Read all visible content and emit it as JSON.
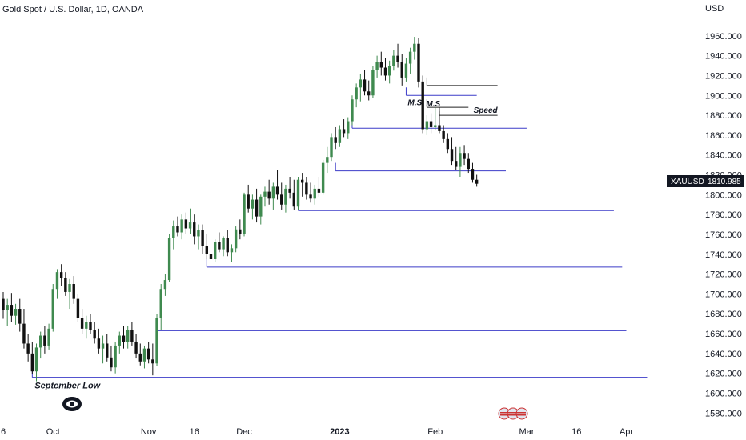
{
  "header": {
    "title": "Gold Spot / U.S. Dollar, 1D, OANDA",
    "currency": "USD"
  },
  "colors": {
    "bull": "#3f8a4f",
    "bear": "#111111",
    "level": "#3b3bc8",
    "ms_line": "#222222",
    "badge_bg": "#131722"
  },
  "chart_data": {
    "type": "candlestick",
    "symbol": "XAUUSD",
    "last_price": "1810.985",
    "ylim": [
      1573,
      1980
    ],
    "y_ticks": [
      "1580.000",
      "1600.000",
      "1620.000",
      "1640.000",
      "1660.000",
      "1680.000",
      "1700.000",
      "1720.000",
      "1740.000",
      "1760.000",
      "1780.000",
      "1800.000",
      "1820.000",
      "1840.000",
      "1860.000",
      "1880.000",
      "1900.000",
      "1920.000",
      "1940.000",
      "1960.000"
    ],
    "y_tick_values": [
      1580,
      1600,
      1620,
      1640,
      1660,
      1680,
      1700,
      1720,
      1740,
      1760,
      1780,
      1800,
      1820,
      1840,
      1860,
      1880,
      1900,
      1920,
      1940,
      1960
    ],
    "x_ticks": [
      {
        "label": "6",
        "index": 0
      },
      {
        "label": "Oct",
        "index": 12
      },
      {
        "label": "Nov",
        "index": 35
      },
      {
        "label": "16",
        "index": 46
      },
      {
        "label": "Dec",
        "index": 58
      },
      {
        "label": "2023",
        "index": 81
      },
      {
        "label": "Feb",
        "index": 104
      },
      {
        "label": "16",
        "index": 138
      },
      {
        "label": "Mar",
        "index": 126
      },
      {
        "label": "Apr",
        "index": 150
      }
    ],
    "candles": [
      [
        1695,
        1702,
        1675,
        1684
      ],
      [
        1684,
        1695,
        1668,
        1689
      ],
      [
        1689,
        1701,
        1672,
        1678
      ],
      [
        1678,
        1690,
        1669,
        1685
      ],
      [
        1685,
        1695,
        1662,
        1670
      ],
      [
        1670,
        1685,
        1645,
        1650
      ],
      [
        1650,
        1660,
        1632,
        1640
      ],
      [
        1640,
        1652,
        1619,
        1622
      ],
      [
        1622,
        1650,
        1612,
        1646
      ],
      [
        1646,
        1662,
        1635,
        1658
      ],
      [
        1658,
        1668,
        1640,
        1648
      ],
      [
        1648,
        1670,
        1644,
        1665
      ],
      [
        1665,
        1710,
        1662,
        1705
      ],
      [
        1705,
        1725,
        1695,
        1722
      ],
      [
        1722,
        1730,
        1708,
        1716
      ],
      [
        1716,
        1722,
        1698,
        1702
      ],
      [
        1702,
        1715,
        1685,
        1710
      ],
      [
        1710,
        1718,
        1690,
        1695
      ],
      [
        1695,
        1700,
        1672,
        1676
      ],
      [
        1676,
        1685,
        1660,
        1665
      ],
      [
        1665,
        1678,
        1655,
        1672
      ],
      [
        1672,
        1680,
        1660,
        1664
      ],
      [
        1664,
        1672,
        1650,
        1655
      ],
      [
        1655,
        1665,
        1640,
        1645
      ],
      [
        1645,
        1658,
        1630,
        1650
      ],
      [
        1650,
        1660,
        1632,
        1636
      ],
      [
        1636,
        1648,
        1622,
        1626
      ],
      [
        1626,
        1652,
        1620,
        1648
      ],
      [
        1648,
        1662,
        1640,
        1658
      ],
      [
        1658,
        1668,
        1645,
        1652
      ],
      [
        1652,
        1668,
        1645,
        1664
      ],
      [
        1664,
        1672,
        1648,
        1652
      ],
      [
        1652,
        1660,
        1635,
        1640
      ],
      [
        1640,
        1650,
        1628,
        1632
      ],
      [
        1632,
        1648,
        1625,
        1645
      ],
      [
        1645,
        1652,
        1630,
        1634
      ],
      [
        1634,
        1650,
        1618,
        1630
      ],
      [
        1630,
        1680,
        1627,
        1676
      ],
      [
        1676,
        1710,
        1664,
        1705
      ],
      [
        1705,
        1720,
        1698,
        1714
      ],
      [
        1714,
        1760,
        1712,
        1756
      ],
      [
        1756,
        1774,
        1745,
        1768
      ],
      [
        1768,
        1778,
        1758,
        1762
      ],
      [
        1762,
        1780,
        1755,
        1775
      ],
      [
        1775,
        1782,
        1760,
        1766
      ],
      [
        1766,
        1786,
        1760,
        1772
      ],
      [
        1772,
        1780,
        1750,
        1758
      ],
      [
        1758,
        1770,
        1745,
        1764
      ],
      [
        1764,
        1770,
        1740,
        1748
      ],
      [
        1748,
        1760,
        1735,
        1740
      ],
      [
        1740,
        1748,
        1728,
        1735
      ],
      [
        1735,
        1755,
        1732,
        1752
      ],
      [
        1752,
        1762,
        1742,
        1745
      ],
      [
        1745,
        1758,
        1738,
        1756
      ],
      [
        1756,
        1764,
        1738,
        1742
      ],
      [
        1742,
        1750,
        1732,
        1746
      ],
      [
        1746,
        1768,
        1742,
        1765
      ],
      [
        1765,
        1775,
        1755,
        1760
      ],
      [
        1760,
        1802,
        1758,
        1800
      ],
      [
        1800,
        1810,
        1782,
        1786
      ],
      [
        1786,
        1800,
        1775,
        1795
      ],
      [
        1795,
        1806,
        1772,
        1778
      ],
      [
        1778,
        1800,
        1770,
        1798
      ],
      [
        1798,
        1808,
        1788,
        1803
      ],
      [
        1803,
        1815,
        1790,
        1796
      ],
      [
        1796,
        1812,
        1785,
        1808
      ],
      [
        1808,
        1825,
        1795,
        1800
      ],
      [
        1800,
        1812,
        1785,
        1790
      ],
      [
        1790,
        1810,
        1782,
        1806
      ],
      [
        1806,
        1818,
        1796,
        1802
      ],
      [
        1802,
        1815,
        1785,
        1788
      ],
      [
        1788,
        1818,
        1785,
        1815
      ],
      [
        1815,
        1822,
        1798,
        1812
      ],
      [
        1812,
        1818,
        1795,
        1800
      ],
      [
        1800,
        1812,
        1792,
        1796
      ],
      [
        1796,
        1810,
        1790,
        1806
      ],
      [
        1806,
        1818,
        1798,
        1802
      ],
      [
        1802,
        1835,
        1800,
        1832
      ],
      [
        1832,
        1848,
        1822,
        1838
      ],
      [
        1838,
        1862,
        1834,
        1858
      ],
      [
        1858,
        1868,
        1846,
        1852
      ],
      [
        1852,
        1870,
        1848,
        1866
      ],
      [
        1866,
        1876,
        1858,
        1862
      ],
      [
        1862,
        1878,
        1856,
        1874
      ],
      [
        1874,
        1900,
        1870,
        1896
      ],
      [
        1896,
        1912,
        1888,
        1908
      ],
      [
        1908,
        1922,
        1894,
        1916
      ],
      [
        1916,
        1926,
        1900,
        1904
      ],
      [
        1904,
        1915,
        1895,
        1900
      ],
      [
        1900,
        1930,
        1897,
        1926
      ],
      [
        1926,
        1940,
        1918,
        1934
      ],
      [
        1934,
        1944,
        1920,
        1928
      ],
      [
        1928,
        1938,
        1915,
        1920
      ],
      [
        1920,
        1935,
        1912,
        1930
      ],
      [
        1930,
        1946,
        1925,
        1940
      ],
      [
        1940,
        1952,
        1928,
        1934
      ],
      [
        1934,
        1942,
        1910,
        1918
      ],
      [
        1918,
        1938,
        1914,
        1932
      ],
      [
        1932,
        1948,
        1922,
        1944
      ],
      [
        1944,
        1959,
        1936,
        1952
      ],
      [
        1952,
        1958,
        1908,
        1914
      ],
      [
        1914,
        1920,
        1862,
        1866
      ],
      [
        1866,
        1880,
        1860,
        1874
      ],
      [
        1874,
        1882,
        1862,
        1868
      ],
      [
        1868,
        1888,
        1865,
        1870
      ],
      [
        1870,
        1884,
        1862,
        1864
      ],
      [
        1864,
        1870,
        1852,
        1856
      ],
      [
        1856,
        1862,
        1842,
        1846
      ],
      [
        1846,
        1858,
        1830,
        1834
      ],
      [
        1834,
        1848,
        1825,
        1828
      ],
      [
        1828,
        1848,
        1818,
        1842
      ],
      [
        1842,
        1850,
        1830,
        1836
      ],
      [
        1836,
        1842,
        1822,
        1826
      ],
      [
        1826,
        1832,
        1812,
        1815
      ],
      [
        1815,
        1820,
        1808,
        1811
      ]
    ],
    "levels": [
      {
        "price": 1910,
        "from": 102,
        "to": 119,
        "style": "ms",
        "label": ""
      },
      {
        "price": 1900,
        "from": 97,
        "to": 114,
        "style": "level",
        "label": "M.S"
      },
      {
        "price": 1888,
        "from": 102,
        "to": 112,
        "style": "ms",
        "label": "M.S"
      },
      {
        "price": 1880,
        "from": 105,
        "to": 119,
        "style": "ms",
        "label": "Speed"
      },
      {
        "price": 1867,
        "from": 84,
        "to": 126,
        "style": "level",
        "label": ""
      },
      {
        "price": 1824,
        "from": 80,
        "to": 121,
        "style": "level",
        "label": ""
      },
      {
        "price": 1784,
        "from": 71,
        "to": 147,
        "style": "level",
        "label": ""
      },
      {
        "price": 1727,
        "from": 49,
        "to": 149,
        "style": "level",
        "label": ""
      },
      {
        "price": 1663,
        "from": 37,
        "to": 150,
        "style": "level",
        "label": ""
      },
      {
        "price": 1616,
        "from": 7,
        "to": 155,
        "style": "level",
        "label": "September Low"
      }
    ]
  }
}
